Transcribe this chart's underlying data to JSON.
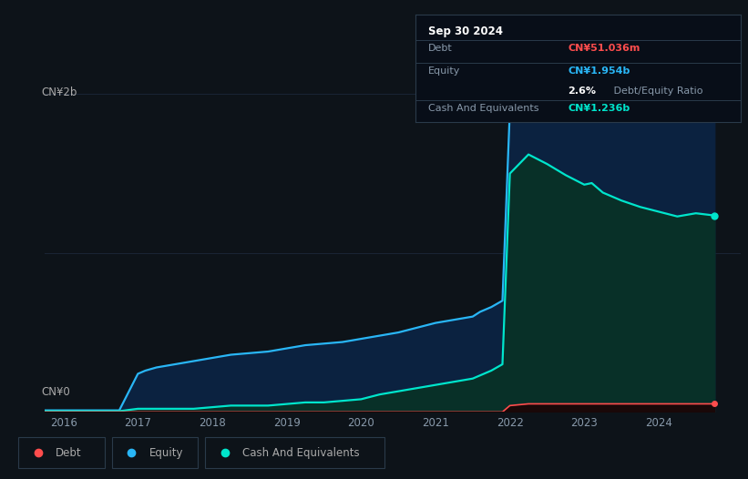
{
  "background_color": "#0d1319",
  "plot_bg_color": "#0d1319",
  "grid_color": "#1a2535",
  "ylabel_top": "CN¥2b",
  "ylabel_bottom": "CN¥0",
  "x_ticks": [
    "2016",
    "2017",
    "2018",
    "2019",
    "2020",
    "2021",
    "2022",
    "2023",
    "2024"
  ],
  "tooltip": {
    "date": "Sep 30 2024",
    "debt_label": "Debt",
    "debt_value": "CN¥51.036m",
    "debt_color": "#ff4d4d",
    "equity_label": "Equity",
    "equity_value": "CN¥1.954b",
    "equity_color": "#29b6f6",
    "ratio_value": "2.6%",
    "ratio_text": " Debt/Equity Ratio",
    "cash_label": "Cash And Equivalents",
    "cash_value": "CN¥1.236b",
    "cash_color": "#00e5cc",
    "box_bg": "#080e18",
    "box_edge": "#2a3a4a",
    "text_color": "#8899aa"
  },
  "equity_line_color": "#29b6f6",
  "equity_fill_top": "#0d2a4a",
  "equity_fill_bot": "#060f1e",
  "cash_line_color": "#00e5cc",
  "cash_fill_top": "#0a3530",
  "cash_fill_bot": "#051815",
  "debt_line_color": "#ff4d4d",
  "legend_border_color": "#2a3a4a",
  "legend_text_color": "#aaaaaa",
  "legend": {
    "debt": "Debt",
    "equity": "Equity",
    "cash": "Cash And Equivalents"
  },
  "years": [
    2015.75,
    2016.0,
    2016.25,
    2016.5,
    2016.75,
    2017.0,
    2017.1,
    2017.25,
    2017.5,
    2017.75,
    2018.0,
    2018.25,
    2018.5,
    2018.75,
    2019.0,
    2019.25,
    2019.5,
    2019.75,
    2020.0,
    2020.25,
    2020.5,
    2020.75,
    2021.0,
    2021.25,
    2021.5,
    2021.6,
    2021.75,
    2021.9,
    2022.0,
    2022.25,
    2022.5,
    2022.75,
    2023.0,
    2023.1,
    2023.25,
    2023.5,
    2023.75,
    2024.0,
    2024.25,
    2024.5,
    2024.75
  ],
  "equity": [
    0.01,
    0.01,
    0.01,
    0.01,
    0.01,
    0.24,
    0.26,
    0.28,
    0.3,
    0.32,
    0.34,
    0.36,
    0.37,
    0.38,
    0.4,
    0.42,
    0.43,
    0.44,
    0.46,
    0.48,
    0.5,
    0.53,
    0.56,
    0.58,
    0.6,
    0.63,
    0.66,
    0.7,
    1.9,
    1.97,
    1.95,
    1.93,
    1.91,
    1.92,
    1.9,
    1.88,
    1.87,
    1.86,
    1.85,
    1.87,
    1.954
  ],
  "cash": [
    0.005,
    0.005,
    0.005,
    0.005,
    0.005,
    0.02,
    0.02,
    0.02,
    0.02,
    0.02,
    0.03,
    0.04,
    0.04,
    0.04,
    0.05,
    0.06,
    0.06,
    0.07,
    0.08,
    0.11,
    0.13,
    0.15,
    0.17,
    0.19,
    0.21,
    0.23,
    0.26,
    0.3,
    1.5,
    1.62,
    1.56,
    1.49,
    1.43,
    1.44,
    1.38,
    1.33,
    1.29,
    1.26,
    1.23,
    1.25,
    1.236
  ],
  "debt": [
    0.0,
    0.0,
    0.0,
    0.0,
    0.0,
    0.0,
    0.0,
    0.0,
    0.0,
    0.0,
    0.0,
    0.0,
    0.0,
    0.0,
    0.0,
    0.0,
    0.0,
    0.0,
    0.0,
    0.0,
    0.0,
    0.0,
    0.0,
    0.0,
    0.0,
    0.0,
    0.0,
    0.0,
    0.04,
    0.051,
    0.051,
    0.051,
    0.051,
    0.051,
    0.051,
    0.051,
    0.051,
    0.051,
    0.051,
    0.051,
    0.051
  ],
  "ylim": [
    0,
    2.2
  ],
  "xlim": [
    2015.75,
    2025.1
  ]
}
